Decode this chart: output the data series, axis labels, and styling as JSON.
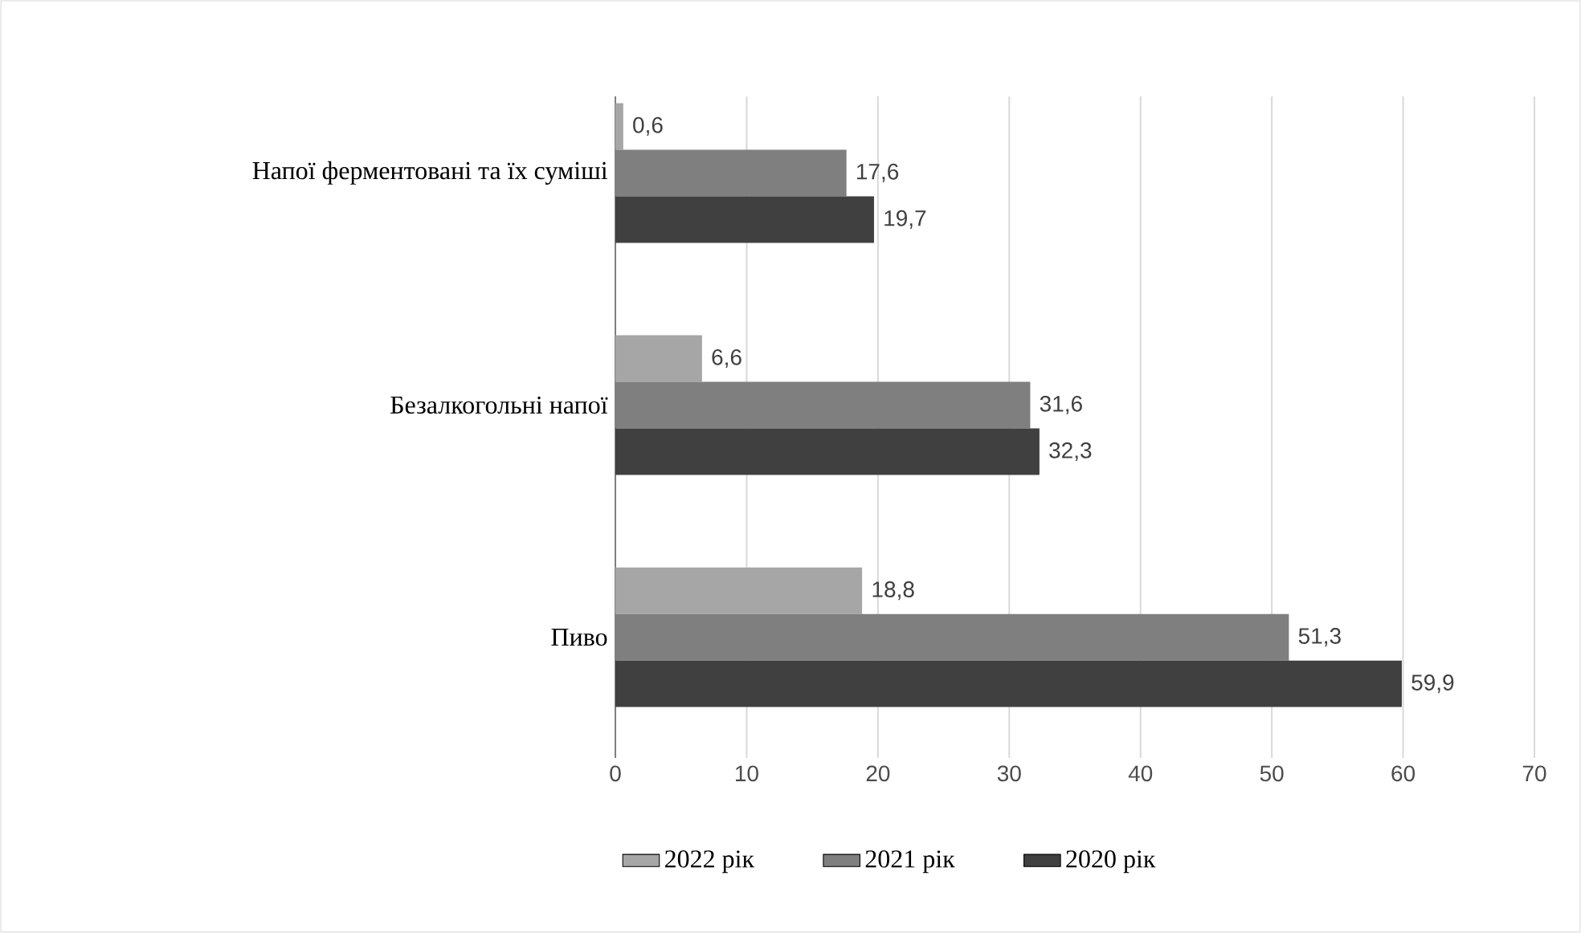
{
  "chart_data": {
    "type": "bar",
    "orientation": "horizontal",
    "categories": [
      "Напої ферментовані та їх суміші",
      "Безалкогольні напої",
      "Пиво"
    ],
    "series": [
      {
        "name": "2022 рік",
        "color": "#a6a6a6",
        "values": [
          0.6,
          6.6,
          18.8
        ],
        "value_labels": [
          "0,6",
          "6,6",
          "18,8"
        ]
      },
      {
        "name": "2021 рік",
        "color": "#7f7f7f",
        "values": [
          17.6,
          31.6,
          51.3
        ],
        "value_labels": [
          "17,6",
          "31,6",
          "51,3"
        ]
      },
      {
        "name": "2020 рік",
        "color": "#404040",
        "values": [
          19.7,
          32.3,
          59.9
        ],
        "value_labels": [
          "19,7",
          "32,3",
          "59,9"
        ]
      }
    ],
    "xlim": [
      0,
      70
    ],
    "xticks": [
      0,
      10,
      20,
      30,
      40,
      50,
      60,
      70
    ],
    "grid": "x",
    "legend": "bottom"
  }
}
